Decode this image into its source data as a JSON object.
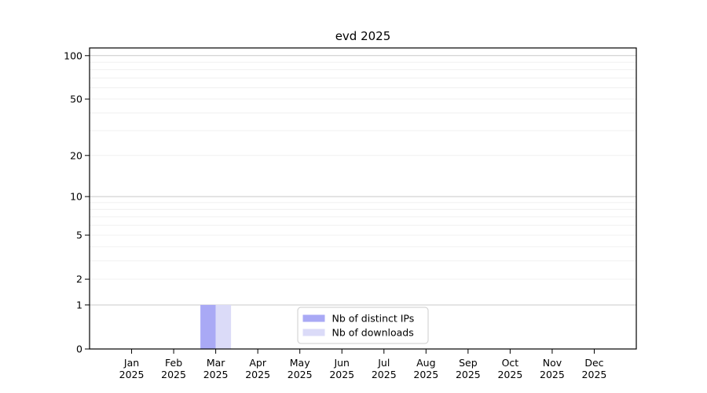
{
  "title": "evd 2025",
  "colors": {
    "background": "#ffffff",
    "axis": "#000000",
    "text": "#000000",
    "grid_minor": "#f0f0f0",
    "grid_major": "#c9c9c9",
    "legend_border": "#cccccc",
    "legend_background": "#ffffff",
    "bar_distinct_ips": "#a9a9f5",
    "bar_downloads": "#dbdbf8"
  },
  "chart_data": {
    "type": "bar",
    "title": "evd 2025",
    "categories": [
      "Jan 2025",
      "Feb 2025",
      "Mar 2025",
      "Apr 2025",
      "May 2025",
      "Jun 2025",
      "Jul 2025",
      "Aug 2025",
      "Sep 2025",
      "Oct 2025",
      "Nov 2025",
      "Dec 2025"
    ],
    "series": [
      {
        "name": "Nb of distinct IPs",
        "color": "#a9a9f5",
        "values": [
          0,
          0,
          1,
          0,
          0,
          0,
          0,
          0,
          0,
          0,
          0,
          0
        ]
      },
      {
        "name": "Nb of downloads",
        "color": "#dbdbf8",
        "values": [
          0,
          0,
          1,
          0,
          0,
          0,
          0,
          0,
          0,
          0,
          0,
          0
        ]
      }
    ],
    "xlabel": "",
    "ylabel": "",
    "y_scale": "log1p",
    "ylim": [
      0,
      100
    ],
    "y_ticks": [
      0,
      1,
      2,
      5,
      10,
      20,
      50,
      100
    ],
    "y_major_grid": [
      1,
      10,
      100
    ],
    "y_minor_grid": [
      2,
      3,
      4,
      5,
      6,
      7,
      8,
      9,
      20,
      30,
      40,
      50,
      60,
      70,
      80,
      90
    ],
    "grid": "horizontal",
    "legend": {
      "position": "inside-bottom-center",
      "entries": [
        "Nb of distinct IPs",
        "Nb of downloads"
      ]
    }
  }
}
